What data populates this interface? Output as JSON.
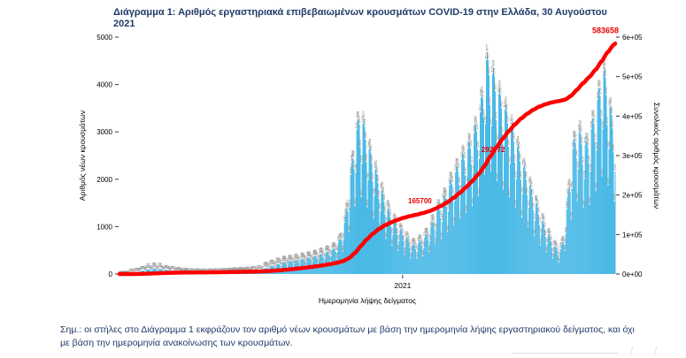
{
  "page": {
    "title": "Διάγραμμα 1: Αριθμός εργαστηριακά επιβεβαιωμένων κρουσμάτων COVID-19 στην Ελλάδα, 30 Αυγούστου 2021",
    "note_line1": "Σημ.: οι στήλες στο Διάγραμμα 1 εκφράζουν τον αριθμό νέων κρουσμάτων με βάση την ημερομηνία λήψης εργαστηριακού δείγματος, και όχι",
    "note_line2": "με βάση την ημερομηνία ανακοίνωσης των κρουσμάτων."
  },
  "colors": {
    "bars": "#3cb4e5",
    "cumulative_line": "#ff0000",
    "annotation": "#e60000",
    "heading": "#1f3a68",
    "note": "#1f3a68",
    "bar_labels": "#7d7d7d",
    "axis_text": "#000000",
    "tick": "#333333"
  },
  "chart_data": {
    "type": "bar+line",
    "title": "",
    "xlabel": "Ημερομηνία λήψης δείγματος",
    "ylabel_left": "Αριθμός νέων κρουσμάτων",
    "ylabel_right": "Συνολικός αριθμός κρουσμάτων",
    "ylim_left": [
      0,
      5000
    ],
    "yticks_left": [
      0,
      1000,
      2000,
      3000,
      4000,
      5000
    ],
    "ylim_right": [
      0,
      600000
    ],
    "yticks_right": [
      0,
      100000,
      200000,
      300000,
      400000,
      500000,
      600000
    ],
    "ytick_labels_right": [
      "0e+00",
      "1e+05",
      "2e+05",
      "3e+05",
      "4e+05",
      "5e+05",
      "6e+05"
    ],
    "x_tick_labels": [
      "2021"
    ],
    "year_tick_date": "2021-01-01",
    "start_date": "2020-02-15",
    "end_date": "2021-08-30",
    "grid": false,
    "legend": "none",
    "series": [
      {
        "name": "Νέα κρούσματα ανά ημέρα (στήλες, αριστερός άξονας)",
        "style": "bars"
      },
      {
        "name": "Συνολικός αριθμός κρουσμάτων (κόκκινη γραμμή, δεξιός άξονας)",
        "style": "line"
      }
    ],
    "weekly_pattern": [
      0.55,
      0.8,
      1.1,
      1.15,
      1.12,
      1.05,
      0.9
    ],
    "final_cumulative": 583658,
    "annotations": [
      {
        "value": 165700,
        "label": "165700"
      },
      {
        "value": 292972,
        "label": "292972"
      },
      {
        "value": 583658,
        "label": "583658"
      }
    ],
    "new_cases_control_points": [
      [
        "2020-02-15",
        2
      ],
      [
        "2020-02-26",
        8
      ],
      [
        "2020-03-05",
        30
      ],
      [
        "2020-03-15",
        80
      ],
      [
        "2020-03-25",
        105
      ],
      [
        "2020-04-05",
        90
      ],
      [
        "2020-04-15",
        65
      ],
      [
        "2020-04-25",
        40
      ],
      [
        "2020-05-10",
        22
      ],
      [
        "2020-05-25",
        18
      ],
      [
        "2020-06-10",
        28
      ],
      [
        "2020-06-25",
        45
      ],
      [
        "2020-07-10",
        55
      ],
      [
        "2020-07-25",
        85
      ],
      [
        "2020-08-05",
        150
      ],
      [
        "2020-08-20",
        230
      ],
      [
        "2020-09-05",
        270
      ],
      [
        "2020-09-20",
        320
      ],
      [
        "2020-10-05",
        400
      ],
      [
        "2020-10-15",
        480
      ],
      [
        "2020-10-22",
        650
      ],
      [
        "2020-10-28",
        1050
      ],
      [
        "2020-11-03",
        1900
      ],
      [
        "2020-11-08",
        2600
      ],
      [
        "2020-11-13",
        3000
      ],
      [
        "2020-11-18",
        2850
      ],
      [
        "2020-11-24",
        2400
      ],
      [
        "2020-12-01",
        2000
      ],
      [
        "2020-12-08",
        1600
      ],
      [
        "2020-12-15",
        1250
      ],
      [
        "2020-12-22",
        1000
      ],
      [
        "2020-12-29",
        850
      ],
      [
        "2021-01-05",
        700
      ],
      [
        "2021-01-12",
        550
      ],
      [
        "2021-01-19",
        600
      ],
      [
        "2021-01-26",
        700
      ],
      [
        "2021-02-02",
        900
      ],
      [
        "2021-02-09",
        1200
      ],
      [
        "2021-02-16",
        1400
      ],
      [
        "2021-02-23",
        1700
      ],
      [
        "2021-03-02",
        1950
      ],
      [
        "2021-03-09",
        2200
      ],
      [
        "2021-03-16",
        2400
      ],
      [
        "2021-03-23",
        2700
      ],
      [
        "2021-03-30",
        3100
      ],
      [
        "2021-04-06",
        4100
      ],
      [
        "2021-04-12",
        3900
      ],
      [
        "2021-04-19",
        3500
      ],
      [
        "2021-04-26",
        3200
      ],
      [
        "2021-05-03",
        2900
      ],
      [
        "2021-05-10",
        2500
      ],
      [
        "2021-05-17",
        2100
      ],
      [
        "2021-05-24",
        1750
      ],
      [
        "2021-05-31",
        1400
      ],
      [
        "2021-06-07",
        1050
      ],
      [
        "2021-06-14",
        800
      ],
      [
        "2021-06-21",
        550
      ],
      [
        "2021-06-28",
        420
      ],
      [
        "2021-07-03",
        700
      ],
      [
        "2021-07-08",
        1600
      ],
      [
        "2021-07-13",
        2400
      ],
      [
        "2021-07-18",
        2800
      ],
      [
        "2021-07-23",
        2600
      ],
      [
        "2021-07-28",
        2450
      ],
      [
        "2021-08-02",
        2700
      ],
      [
        "2021-08-07",
        3100
      ],
      [
        "2021-08-12",
        3500
      ],
      [
        "2021-08-17",
        3900
      ],
      [
        "2021-08-22",
        3400
      ],
      [
        "2021-08-26",
        3000
      ],
      [
        "2021-08-30",
        2700
      ]
    ]
  }
}
